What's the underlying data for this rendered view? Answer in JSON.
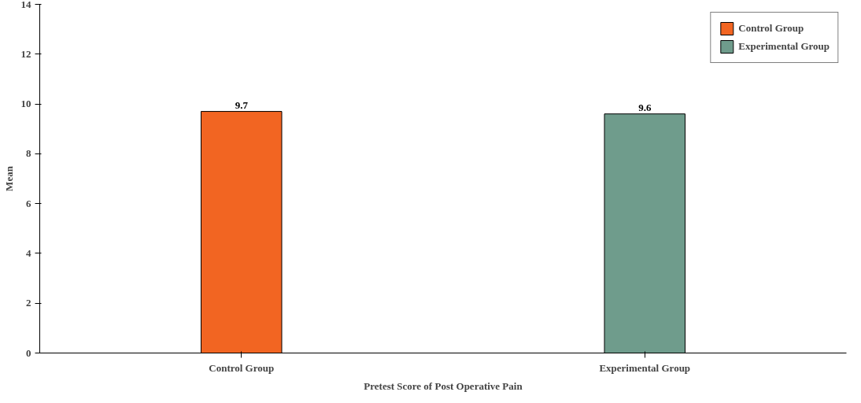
{
  "chart_data": {
    "type": "bar",
    "xlabel": "Pretest Score of Post Operative Pain",
    "ylabel": "Mean",
    "categories": [
      "Control Group",
      "Experimental Group"
    ],
    "series": [
      {
        "name": "Control Group",
        "color": "#f26522",
        "values": [
          9.7,
          null
        ]
      },
      {
        "name": "Experimental Group",
        "color": "#6f9c8c",
        "values": [
          null,
          9.6
        ]
      }
    ],
    "ylim": [
      0,
      14
    ],
    "yticks": [
      0,
      2,
      4,
      6,
      8,
      10,
      12,
      14
    ],
    "data_labels": true,
    "legend": "top right",
    "grid": false
  }
}
